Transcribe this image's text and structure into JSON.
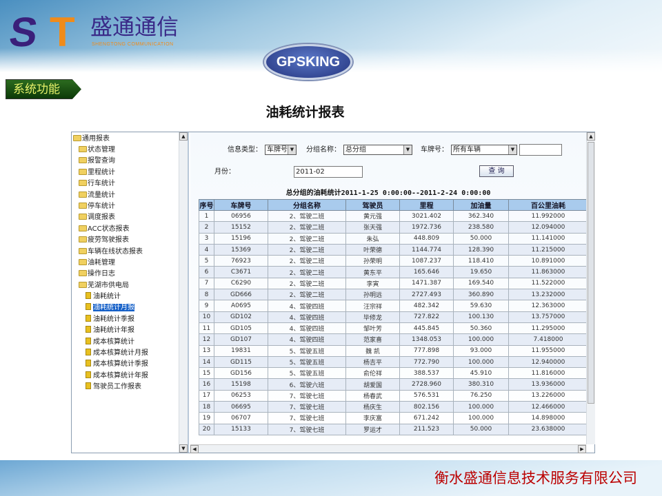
{
  "header": {
    "logo_letters": "ST",
    "logo_cn": "盛通通信",
    "logo_en": "SHENGTONG COMMUNICATION",
    "badge": "GPSKING"
  },
  "section_button": "系统功能",
  "page_title": "油耗统计报表",
  "tree": {
    "root": "通用报表",
    "items": [
      "状态管理",
      "报警查询",
      "里程统计",
      "行车统计",
      "流量统计",
      "停车统计",
      "调度报表",
      "ACC状态报表",
      "疲劳驾驶报表",
      "车辆在线状态报表",
      "油耗管理",
      "操作日志",
      "芜湖市供电局"
    ],
    "children": [
      "油耗统计",
      "油耗统计月报",
      "油耗统计季报",
      "油耗统计年报",
      "成本核算统计",
      "成本核算统计月报",
      "成本核算统计季报",
      "成本核算统计年报",
      "驾驶员工作报表"
    ],
    "selected": "油耗统计月报"
  },
  "filters": {
    "info_type_label": "信息类型：",
    "info_type_value": "车牌号",
    "group_label": "分组名称：",
    "group_value": "总分组",
    "plate_label": "车牌号：",
    "plate_value": "所有车辆",
    "plate_text": "",
    "month_label": "月份：",
    "month_value": "2011-02",
    "query_button": "查 询"
  },
  "caption": "总分组的油耗统计2011-1-25 0:00:00--2011-2-24 0:00:00",
  "table": {
    "columns": [
      "序号",
      "车牌号",
      "分组名称",
      "驾驶员",
      "里程",
      "加油量",
      "百公里油耗"
    ],
    "rows": [
      [
        "1",
        "06956",
        "2、驾驶二班",
        "黄元强",
        "3021.402",
        "362.340",
        "11.992000"
      ],
      [
        "2",
        "15152",
        "2、驾驶二班",
        "张天强",
        "1972.736",
        "238.580",
        "12.094000"
      ],
      [
        "3",
        "15196",
        "2、驾驶二班",
        "朱弘",
        "448.809",
        "50.000",
        "11.141000"
      ],
      [
        "4",
        "15369",
        "2、驾驶二班",
        "叶荣德",
        "1144.774",
        "128.390",
        "11.215000"
      ],
      [
        "5",
        "76923",
        "2、驾驶二班",
        "孙荣明",
        "1087.237",
        "118.410",
        "10.891000"
      ],
      [
        "6",
        "C3671",
        "2、驾驶二班",
        "黄东平",
        "165.646",
        "19.650",
        "11.863000"
      ],
      [
        "7",
        "C6290",
        "2、驾驶二班",
        "李寅",
        "1471.387",
        "169.540",
        "11.522000"
      ],
      [
        "8",
        "GD666",
        "2、驾驶二班",
        "孙明远",
        "2727.493",
        "360.890",
        "13.232000"
      ],
      [
        "9",
        "A0695",
        "4、驾驶四班",
        "汪宗祥",
        "482.342",
        "59.630",
        "12.363000"
      ],
      [
        "10",
        "GD102",
        "4、驾驶四班",
        "毕修龙",
        "727.822",
        "100.130",
        "13.757000"
      ],
      [
        "11",
        "GD105",
        "4、驾驶四班",
        "邹叶芳",
        "445.845",
        "50.360",
        "11.295000"
      ],
      [
        "12",
        "GD107",
        "4、驾驶四班",
        "范家喜",
        "1348.053",
        "100.000",
        "7.418000"
      ],
      [
        "13",
        "19831",
        "5、驾驶五班",
        "魏 凯",
        "777.898",
        "93.000",
        "11.955000"
      ],
      [
        "14",
        "GD115",
        "5、驾驶五班",
        "杨吉平",
        "772.790",
        "100.000",
        "12.940000"
      ],
      [
        "15",
        "GD156",
        "5、驾驶五班",
        "俞伦祥",
        "388.537",
        "45.910",
        "11.816000"
      ],
      [
        "16",
        "15198",
        "6、驾驶六班",
        "胡爱国",
        "2728.960",
        "380.310",
        "13.936000"
      ],
      [
        "17",
        "06253",
        "7、驾驶七班",
        "杨春武",
        "576.531",
        "76.250",
        "13.226000"
      ],
      [
        "18",
        "06695",
        "7、驾驶七班",
        "杨庆生",
        "802.156",
        "100.000",
        "12.466000"
      ],
      [
        "19",
        "06707",
        "7、驾驶七班",
        "李庆富",
        "671.242",
        "100.000",
        "14.898000"
      ],
      [
        "20",
        "15133",
        "7、驾驶七班",
        "罗运才",
        "211.523",
        "50.000",
        "23.638000"
      ]
    ]
  },
  "footer": {
    "company": "衡水盛通信息技术服务有限公司"
  },
  "colors": {
    "header_row": "#a9cbed",
    "alt_row": "#e6ecf6",
    "company_text": "#bb0000",
    "section_button": "#1c5412"
  }
}
